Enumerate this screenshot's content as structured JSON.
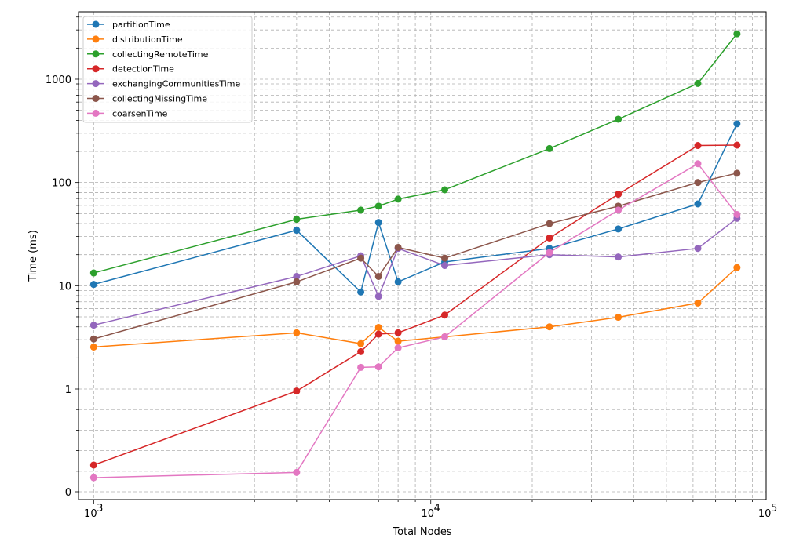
{
  "chart_data": {
    "type": "line",
    "xlabel": "Total Nodes",
    "ylabel": "Time (ms)",
    "xscale": "log",
    "yscale": "log",
    "grid": "major and minor, dashed",
    "legend_position": "top-left",
    "x_ticks": [
      {
        "value": 1000,
        "base": "10",
        "exp": "3"
      },
      {
        "value": 10000,
        "base": "10",
        "exp": "4"
      },
      {
        "value": 100000,
        "base": "10",
        "exp": "5"
      }
    ],
    "y_tick_labels": [
      "0",
      "1",
      "10",
      "100",
      "1000"
    ],
    "x": [
      1000,
      4000,
      6200,
      7000,
      8000,
      11000,
      22500,
      36000,
      62000,
      81000
    ],
    "series": [
      {
        "name": "partitionTime",
        "color": "#1f77b4",
        "values": [
          10.3,
          34.5,
          8.7,
          41.0,
          10.9,
          17.0,
          23.0,
          35.5,
          62.0,
          370.0
        ]
      },
      {
        "name": "distributionTime",
        "color": "#ff7f0e",
        "values": [
          2.55,
          3.5,
          2.75,
          3.95,
          2.9,
          3.2,
          4.0,
          4.95,
          6.8,
          15.0
        ]
      },
      {
        "name": "collectingRemoteTime",
        "color": "#2ca02c",
        "values": [
          13.3,
          44.0,
          54.0,
          59.0,
          69.0,
          85.0,
          213.0,
          410.0,
          910.0,
          2750.0
        ]
      },
      {
        "name": "detectionTime",
        "color": "#d62728",
        "values": [
          0.26,
          0.98,
          2.3,
          3.4,
          3.5,
          5.2,
          29.0,
          77.0,
          228.0,
          230.0
        ]
      },
      {
        "name": "exchangingCommunitiesTime",
        "color": "#9467bd",
        "values": [
          4.15,
          12.3,
          19.5,
          7.9,
          23.0,
          15.7,
          20.0,
          19.0,
          23.0,
          45.0
        ]
      },
      {
        "name": "collectingMissingTime",
        "color": "#8c564b",
        "values": [
          3.05,
          10.9,
          18.5,
          12.3,
          23.5,
          18.5,
          40.0,
          59.0,
          100.0,
          123.0
        ]
      },
      {
        "name": "coarsenTime",
        "color": "#e377c2",
        "values": [
          0.137,
          0.188,
          1.62,
          1.64,
          2.5,
          3.2,
          21.0,
          54.0,
          152.0,
          49.0
        ]
      }
    ]
  }
}
